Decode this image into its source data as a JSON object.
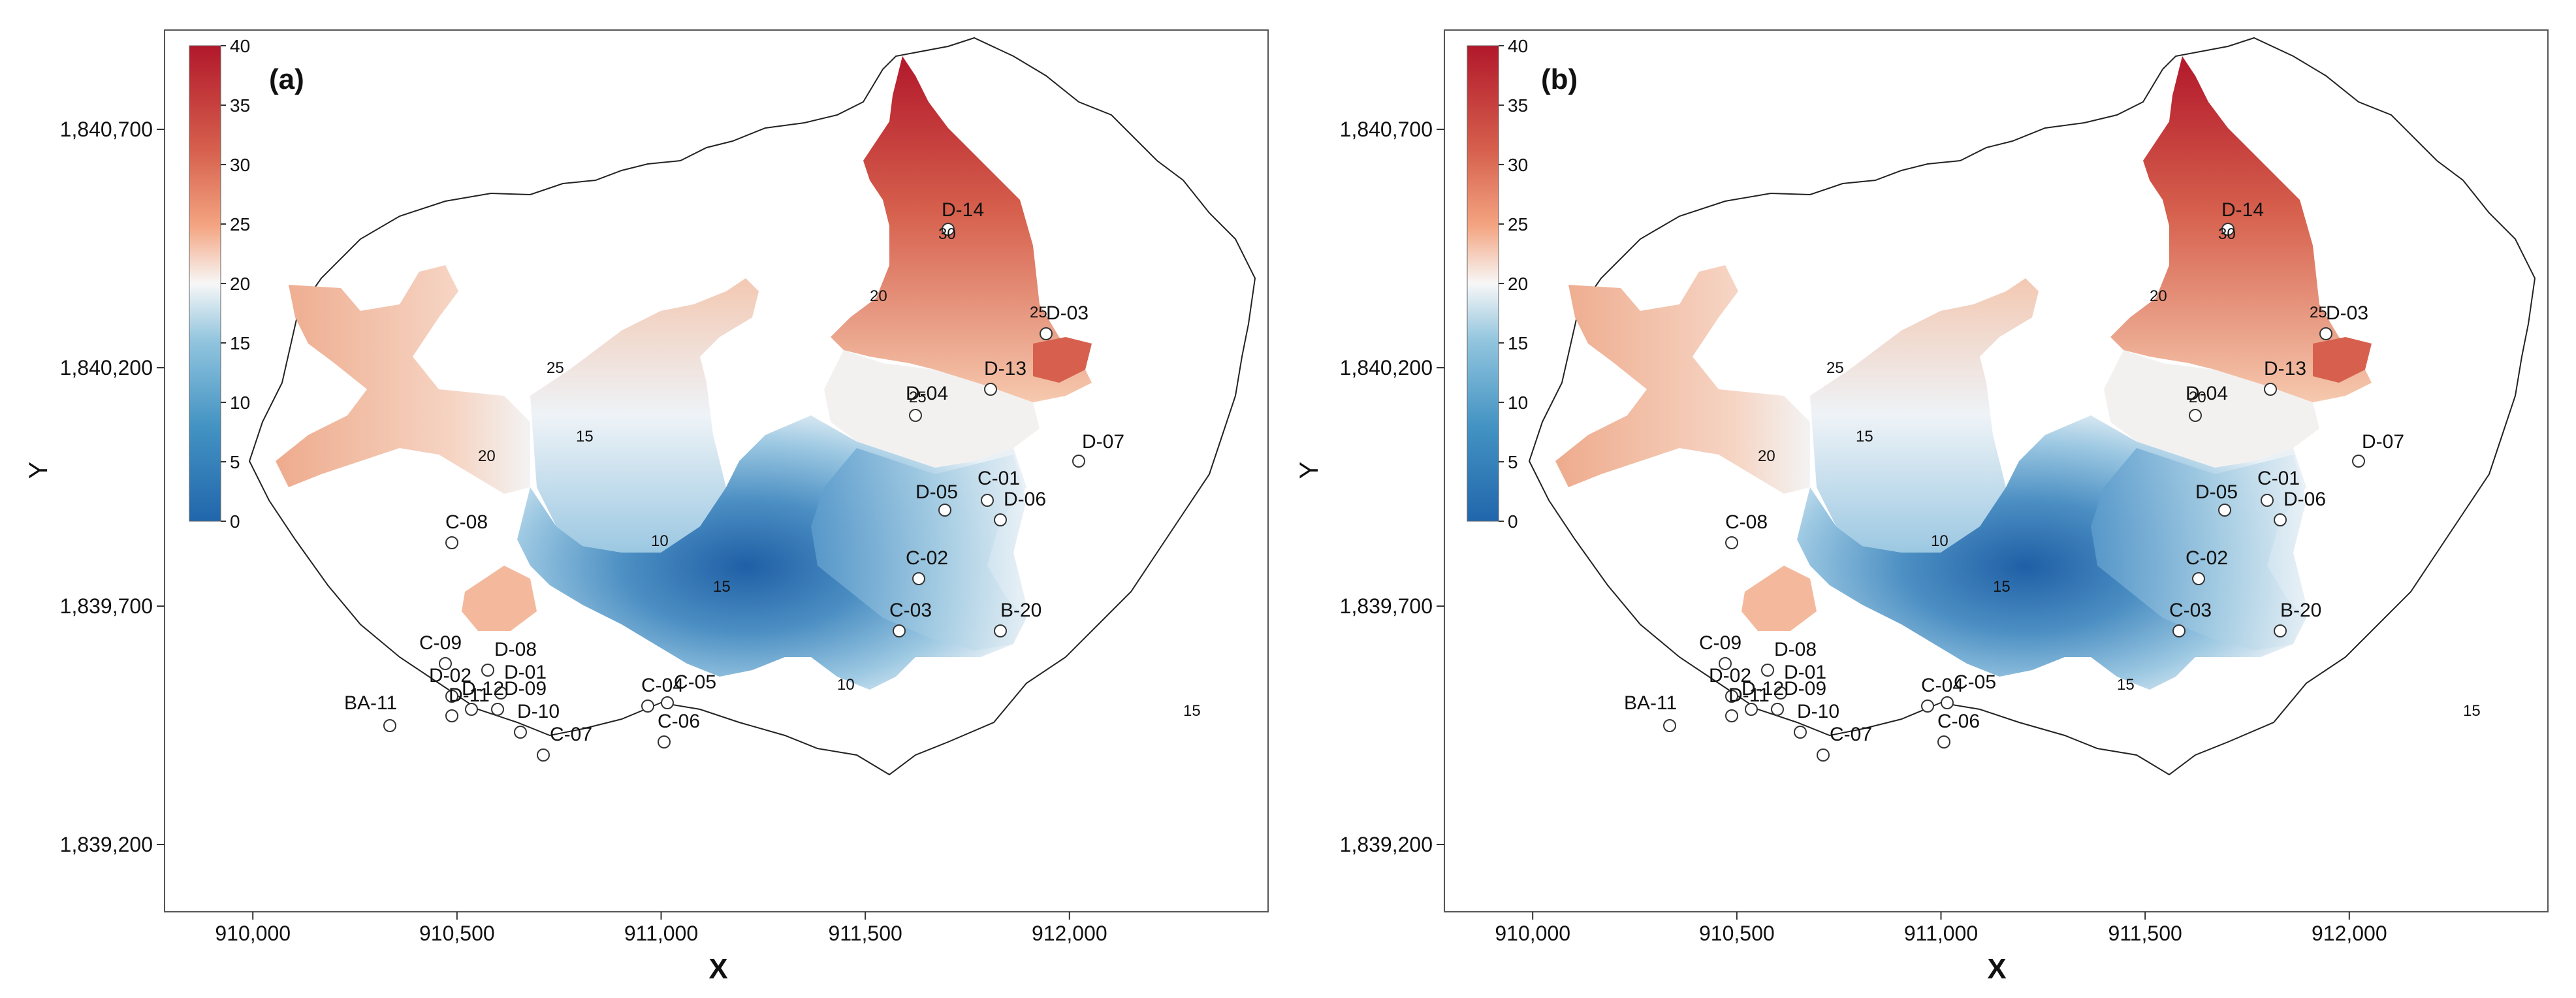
{
  "panels": [
    {
      "id": "a",
      "label": "(a)",
      "x_label": "X",
      "y_label": "Y",
      "x_ticks": [
        "910,000",
        "910,500",
        "911,000",
        "911,500",
        "912,000"
      ],
      "y_ticks": [
        "1,840,700",
        "1,840,200",
        "1,839,700",
        "1,839,200"
      ],
      "colorbar_ticks": [
        "40",
        "35",
        "30",
        "25",
        "20",
        "15",
        "10",
        "5",
        "0"
      ],
      "wells": [
        "D-14",
        "D-03",
        "D-13",
        "D-04",
        "D-07",
        "D-05",
        "C-01",
        "D-06",
        "C-02",
        "C-08",
        "C-03",
        "B-20",
        "C-09",
        "D-08",
        "D-01",
        "D-02",
        "D-11",
        "D-12",
        "D-09",
        "D-10",
        "C-07",
        "C-04",
        "C-05",
        "C-06",
        "BA-11"
      ],
      "contours": [
        "30",
        "25",
        "25",
        "20",
        "20",
        "15",
        "15",
        "10",
        "10",
        "15",
        "25"
      ]
    },
    {
      "id": "b",
      "label": "(b)",
      "x_label": "X",
      "y_label": "Y",
      "x_ticks": [
        "910,000",
        "910,500",
        "911,000",
        "911,500",
        "912,000"
      ],
      "y_ticks": [
        "1,840,700",
        "1,840,200",
        "1,839,700",
        "1,839,200"
      ],
      "colorbar_ticks": [
        "40",
        "35",
        "30",
        "25",
        "20",
        "15",
        "10",
        "5",
        "0"
      ],
      "wells": [
        "D-14",
        "D-03",
        "D-13",
        "D-04",
        "D-07",
        "D-05",
        "C-01",
        "D-06",
        "C-02",
        "C-08",
        "C-03",
        "B-20",
        "C-09",
        "D-08",
        "D-01",
        "D-02",
        "D-11",
        "D-12",
        "D-09",
        "D-10",
        "C-07",
        "C-04",
        "C-05",
        "C-06",
        "BA-11"
      ],
      "contours": [
        "30",
        "25",
        "25",
        "20",
        "20",
        "15",
        "15",
        "10",
        "15",
        "15",
        "20"
      ]
    }
  ],
  "colors": {
    "high": "#b2182b",
    "mid": "#f7f7f7",
    "low": "#2166ac"
  }
}
